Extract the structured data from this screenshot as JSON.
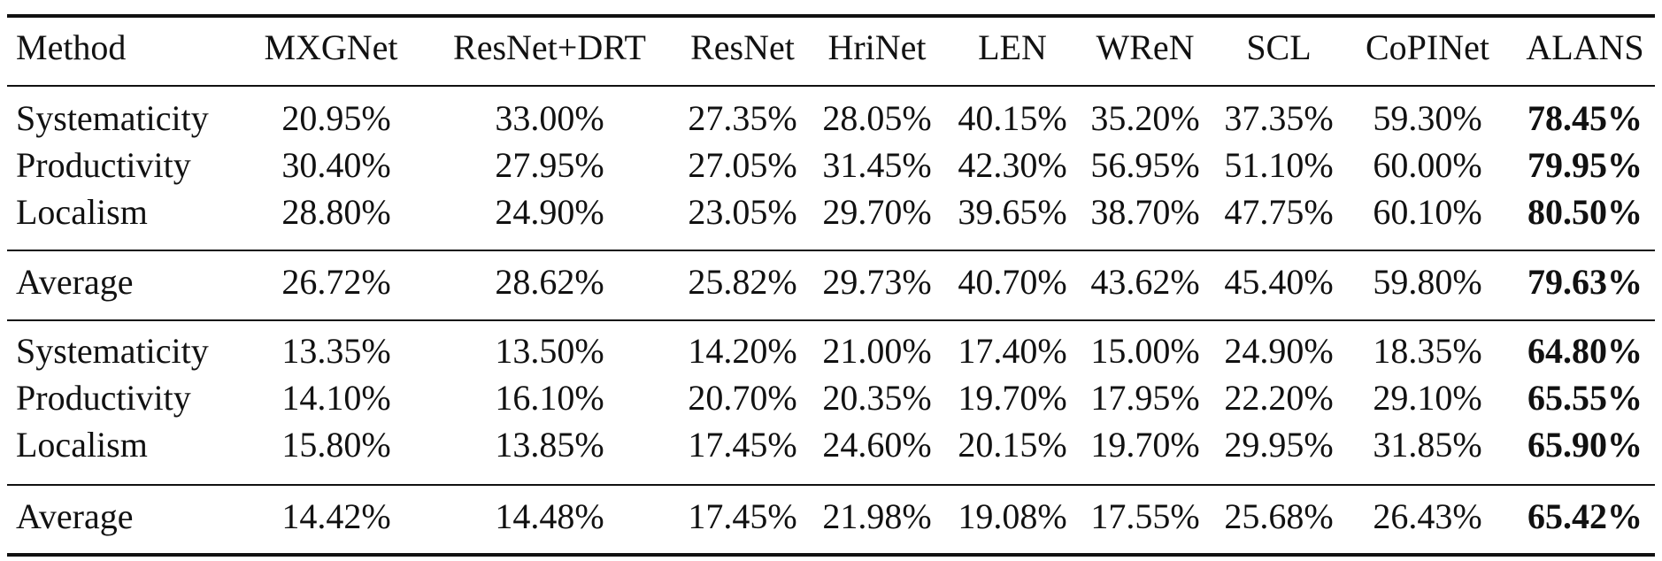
{
  "table": {
    "header": [
      "Method",
      "MXGNet",
      "ResNet+DRT",
      "ResNet",
      "HriNet",
      "LEN",
      "WReN",
      "SCL",
      "CoPINet",
      "ALANS"
    ],
    "groups": [
      {
        "rows": [
          [
            "Systematicity",
            "20.95%",
            "33.00%",
            "27.35%",
            "28.05%",
            "40.15%",
            "35.20%",
            "37.35%",
            "59.30%",
            "78.45%"
          ],
          [
            "Productivity",
            "30.40%",
            "27.95%",
            "27.05%",
            "31.45%",
            "42.30%",
            "56.95%",
            "51.10%",
            "60.00%",
            "79.95%"
          ],
          [
            "Localism",
            "28.80%",
            "24.90%",
            "23.05%",
            "29.70%",
            "39.65%",
            "38.70%",
            "47.75%",
            "60.10%",
            "80.50%"
          ]
        ]
      },
      {
        "rows": [
          [
            "Average",
            "26.72%",
            "28.62%",
            "25.82%",
            "29.73%",
            "40.70%",
            "43.62%",
            "45.40%",
            "59.80%",
            "79.63%"
          ]
        ]
      },
      {
        "rows": [
          [
            "Systematicity",
            "13.35%",
            "13.50%",
            "14.20%",
            "21.00%",
            "17.40%",
            "15.00%",
            "24.90%",
            "18.35%",
            "64.80%"
          ],
          [
            "Productivity",
            "14.10%",
            "16.10%",
            "20.70%",
            "20.35%",
            "19.70%",
            "17.95%",
            "22.20%",
            "29.10%",
            "65.55%"
          ],
          [
            "Localism",
            "15.80%",
            "13.85%",
            "17.45%",
            "24.60%",
            "20.15%",
            "19.70%",
            "29.95%",
            "31.85%",
            "65.90%"
          ]
        ]
      },
      {
        "rows": [
          [
            "Average",
            "14.42%",
            "14.48%",
            "17.45%",
            "21.98%",
            "19.08%",
            "17.55%",
            "25.68%",
            "26.43%",
            "65.42%"
          ]
        ]
      }
    ]
  }
}
